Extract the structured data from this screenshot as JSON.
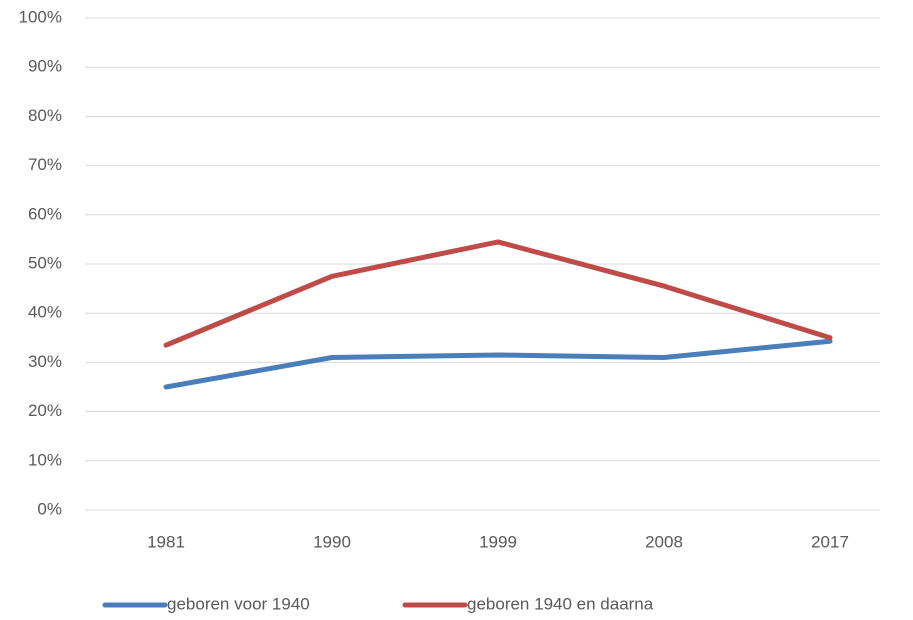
{
  "chart_data": {
    "type": "line",
    "categories": [
      "1981",
      "1990",
      "1999",
      "2008",
      "2017"
    ],
    "series": [
      {
        "name": "geboren voor 1940",
        "color": "#4a7ebb",
        "values": [
          25,
          31,
          31.5,
          31,
          34.3
        ]
      },
      {
        "name": "geboren 1940 en daarna",
        "color": "#be4b48",
        "values": [
          33.5,
          47.5,
          54.5,
          45.5,
          35
        ]
      }
    ],
    "ylim": [
      0,
      100
    ],
    "yticks": [
      {
        "value": 0,
        "label": "0%"
      },
      {
        "value": 10,
        "label": "10%"
      },
      {
        "value": 20,
        "label": "20%"
      },
      {
        "value": 30,
        "label": "30%"
      },
      {
        "value": 40,
        "label": "40%"
      },
      {
        "value": 50,
        "label": "50%"
      },
      {
        "value": 60,
        "label": "60%"
      },
      {
        "value": 70,
        "label": "70%"
      },
      {
        "value": 80,
        "label": "80%"
      },
      {
        "value": 90,
        "label": "90%"
      },
      {
        "value": 100,
        "label": "100%"
      }
    ],
    "grid": true,
    "legend": "bottom"
  }
}
